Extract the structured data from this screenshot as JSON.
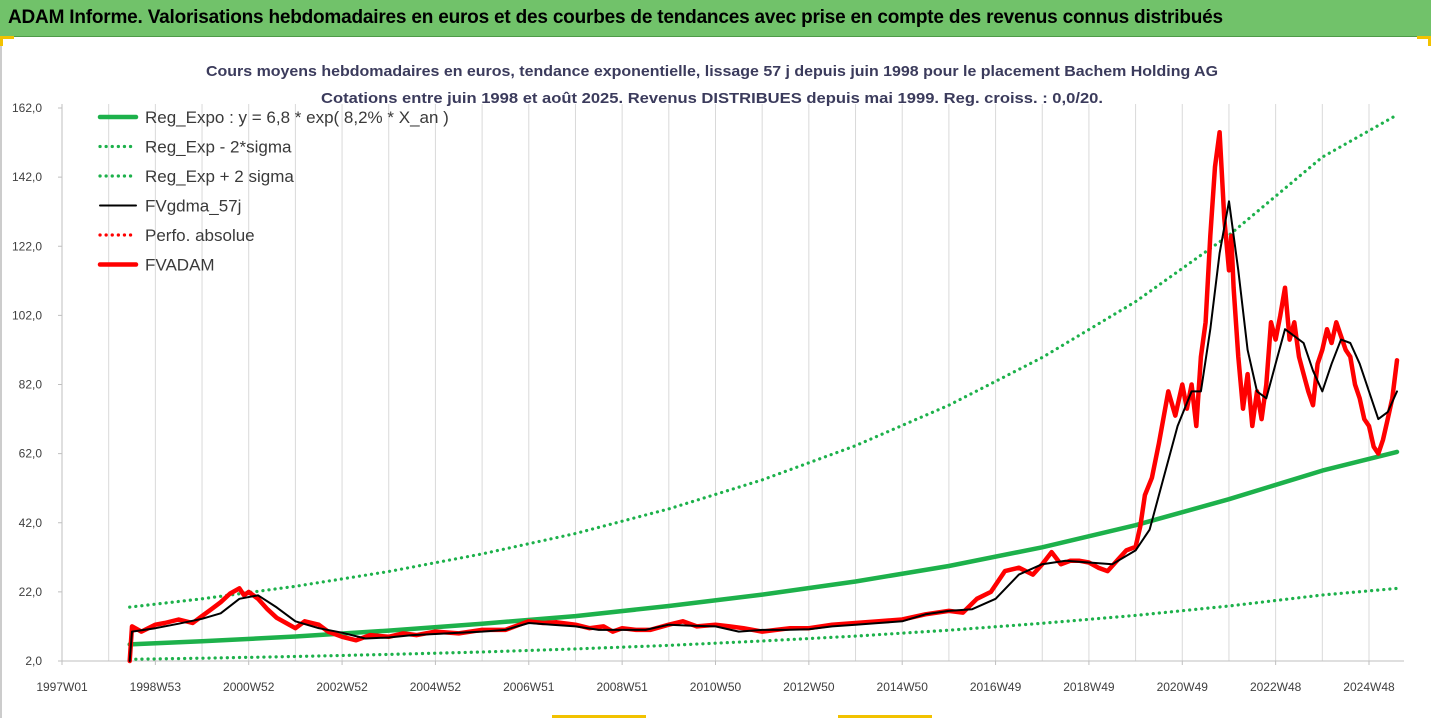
{
  "banner": {
    "title": "ADAM Informe. Valorisations hebdomadaires en euros et des courbes de tendances avec prise en compte des revenus connus distribués"
  },
  "chart_data": {
    "type": "line",
    "title": "Cours moyens hebdomadaires en euros, tendance exponentielle, lissage 57 j depuis juin 1998 pour le placement Bachem Holding AG",
    "subtitle": "Cotations entre juin 1998 et août 2025. Revenus DISTRIBUES depuis mai 1999. Reg. croiss. : 0,0/20.",
    "xlabel": "",
    "ylabel": "",
    "x_unit": "year",
    "xlim": [
      1997.0,
      2025.75
    ],
    "ylim": [
      2.0,
      162.0
    ],
    "y_ticks": [
      "2,0",
      "22,0",
      "42,0",
      "62,0",
      "82,0",
      "102,0",
      "122,0",
      "142,0",
      "162,0"
    ],
    "x_ticks": [
      {
        "label": "1997W01",
        "x": 1997.0
      },
      {
        "label": "1998W53",
        "x": 1999.0
      },
      {
        "label": "2000W52",
        "x": 2001.0
      },
      {
        "label": "2002W52",
        "x": 2003.0
      },
      {
        "label": "2004W52",
        "x": 2005.0
      },
      {
        "label": "2006W51",
        "x": 2007.0
      },
      {
        "label": "2008W51",
        "x": 2009.0
      },
      {
        "label": "2010W50",
        "x": 2011.0
      },
      {
        "label": "2012W50",
        "x": 2013.0
      },
      {
        "label": "2014W50",
        "x": 2015.0
      },
      {
        "label": "2016W49",
        "x": 2017.0
      },
      {
        "label": "2018W49",
        "x": 2019.0
      },
      {
        "label": "2020W49",
        "x": 2021.0
      },
      {
        "label": "2022W48",
        "x": 2023.0
      },
      {
        "label": "2024W48",
        "x": 2025.0
      }
    ],
    "grid": "vertical",
    "legend_position": "top-left",
    "colors": {
      "trend": "#1db14b",
      "bands": "#1db14b",
      "smoothed": "#000000",
      "absolute": "#ff0000",
      "price": "#ff0000",
      "grid": "#d9d9d9",
      "banner": "#71c26a",
      "corner": "#f2c200"
    },
    "series": [
      {
        "name": "Reg_Expo : y = 6,8 * exp( 8,2% *  X_an )",
        "style": "solid-thick",
        "color": "#1db14b",
        "x": [
          1998.45,
          2000,
          2002,
          2004,
          2006,
          2008,
          2010,
          2012,
          2014,
          2016,
          2018,
          2020,
          2022,
          2024,
          2025.6
        ],
        "y": [
          6.8,
          7.7,
          9.1,
          10.8,
          12.8,
          15.0,
          17.9,
          21.2,
          25.0,
          29.5,
          34.9,
          41.3,
          48.8,
          57.1,
          62.5
        ]
      },
      {
        "name": "Reg_Exp - 2*sigma",
        "style": "dotted",
        "color": "#1db14b",
        "x": [
          1998.45,
          2000,
          2002,
          2004,
          2006,
          2008,
          2010,
          2012,
          2014,
          2016,
          2018,
          2020,
          2022,
          2024,
          2025.6
        ],
        "y": [
          2.5,
          2.8,
          3.3,
          3.9,
          4.6,
          5.5,
          6.5,
          7.8,
          9.2,
          10.9,
          12.9,
          15.2,
          17.9,
          21.1,
          23.0
        ]
      },
      {
        "name": "Reg_Exp + 2 sigma",
        "style": "dotted",
        "color": "#1db14b",
        "x": [
          1998.45,
          2000,
          2002,
          2004,
          2006,
          2008,
          2010,
          2012,
          2014,
          2016,
          2018,
          2020,
          2022,
          2024,
          2025.6
        ],
        "y": [
          17.6,
          20.0,
          23.6,
          27.9,
          33.0,
          38.9,
          46.0,
          54.4,
          64.3,
          76.0,
          89.8,
          106.0,
          125.2,
          147.8,
          160.0
        ]
      },
      {
        "name": "FVgdma_57j",
        "style": "solid",
        "color": "#000000",
        "x": [
          1998.45,
          1998.5,
          1999.0,
          1999.5,
          2000.0,
          2000.4,
          2000.8,
          2001.2,
          2001.6,
          2002.0,
          2002.5,
          2003.0,
          2003.5,
          2004.0,
          2004.5,
          2005.0,
          2005.5,
          2006.0,
          2006.5,
          2007.0,
          2007.5,
          2008.0,
          2008.5,
          2009.0,
          2009.5,
          2010.0,
          2010.5,
          2011.0,
          2011.5,
          2012.0,
          2012.5,
          2013.0,
          2013.5,
          2014.0,
          2014.5,
          2015.0,
          2015.5,
          2016.0,
          2016.5,
          2017.0,
          2017.5,
          2018.0,
          2018.5,
          2019.0,
          2019.5,
          2020.0,
          2020.3,
          2020.6,
          2020.9,
          2021.2,
          2021.4,
          2021.6,
          2021.8,
          2022.0,
          2022.2,
          2022.4,
          2022.6,
          2022.8,
          2023.0,
          2023.2,
          2023.4,
          2023.6,
          2023.8,
          2024.0,
          2024.2,
          2024.4,
          2024.6,
          2024.8,
          2025.0,
          2025.2,
          2025.4,
          2025.6
        ],
        "y": [
          2.0,
          10.5,
          11.5,
          12.8,
          14.2,
          15.8,
          20.0,
          21.0,
          17.5,
          13.5,
          11.5,
          10.2,
          8.5,
          8.8,
          9.5,
          9.8,
          10.2,
          10.5,
          11.0,
          13.0,
          12.5,
          12.0,
          11.0,
          11.0,
          11.0,
          12.5,
          12.2,
          12.0,
          10.5,
          11.0,
          11.0,
          11.2,
          12.0,
          12.5,
          13.0,
          13.5,
          15.5,
          16.5,
          17.0,
          20.0,
          27.0,
          30.0,
          31.0,
          30.5,
          30.0,
          34.0,
          40.0,
          55.0,
          70.0,
          80.0,
          80.0,
          98.0,
          120.0,
          135.0,
          115.0,
          92.0,
          80.0,
          78.0,
          88.0,
          98.0,
          96.0,
          94.0,
          86.0,
          80.0,
          88.0,
          95.0,
          94.0,
          88.0,
          80.0,
          72.0,
          74.0,
          80.0
        ]
      },
      {
        "name": "Perfo. absolue",
        "style": "dotted",
        "color": "#ff0000",
        "x": [],
        "y": []
      },
      {
        "name": "FVADAM",
        "style": "solid-thick",
        "color": "#ff0000",
        "x": [
          1998.45,
          1998.5,
          1998.7,
          1999.0,
          1999.2,
          1999.5,
          1999.8,
          2000.0,
          2000.2,
          2000.4,
          2000.6,
          2000.8,
          2000.9,
          2001.0,
          2001.2,
          2001.4,
          2001.6,
          2001.8,
          2002.0,
          2002.2,
          2002.5,
          2002.7,
          2003.0,
          2003.3,
          2003.6,
          2004.0,
          2004.3,
          2004.6,
          2005.0,
          2005.5,
          2006.0,
          2006.5,
          2006.8,
          2007.0,
          2007.3,
          2007.6,
          2008.0,
          2008.3,
          2008.6,
          2008.8,
          2009.0,
          2009.3,
          2009.6,
          2010.0,
          2010.3,
          2010.6,
          2011.0,
          2011.3,
          2011.6,
          2012.0,
          2012.3,
          2012.6,
          2013.0,
          2013.5,
          2014.0,
          2014.5,
          2015.0,
          2015.5,
          2016.0,
          2016.3,
          2016.6,
          2016.9,
          2017.2,
          2017.5,
          2017.8,
          2018.0,
          2018.2,
          2018.4,
          2018.6,
          2018.8,
          2019.0,
          2019.2,
          2019.4,
          2019.6,
          2019.8,
          2020.0,
          2020.1,
          2020.2,
          2020.35,
          2020.5,
          2020.7,
          2020.85,
          2021.0,
          2021.1,
          2021.2,
          2021.3,
          2021.4,
          2021.5,
          2021.6,
          2021.7,
          2021.8,
          2021.9,
          2022.0,
          2022.05,
          2022.1,
          2022.2,
          2022.3,
          2022.4,
          2022.5,
          2022.6,
          2022.7,
          2022.8,
          2022.9,
          2023.0,
          2023.1,
          2023.2,
          2023.3,
          2023.4,
          2023.5,
          2023.6,
          2023.7,
          2023.8,
          2023.9,
          2024.0,
          2024.1,
          2024.2,
          2024.3,
          2024.4,
          2024.5,
          2024.6,
          2024.7,
          2024.8,
          2024.9,
          2025.0,
          2025.1,
          2025.2,
          2025.3,
          2025.4,
          2025.5,
          2025.6
        ],
        "y": [
          2.0,
          12.0,
          10.5,
          12.5,
          13.0,
          14.0,
          13.0,
          15.0,
          17.0,
          19.0,
          21.5,
          23.0,
          21.0,
          22.0,
          20.0,
          17.0,
          14.5,
          13.0,
          11.5,
          13.5,
          12.5,
          10.5,
          9.0,
          8.0,
          9.5,
          9.0,
          10.0,
          9.5,
          10.5,
          10.0,
          11.0,
          11.0,
          12.5,
          13.5,
          13.0,
          13.2,
          12.5,
          11.5,
          12.0,
          10.5,
          11.5,
          11.0,
          11.0,
          12.5,
          13.5,
          12.0,
          12.5,
          12.0,
          11.5,
          10.5,
          11.0,
          11.5,
          11.5,
          12.5,
          13.0,
          13.5,
          14.0,
          15.5,
          16.5,
          16.0,
          20.0,
          22.0,
          28.0,
          29.0,
          27.0,
          30.0,
          33.5,
          30.0,
          31.0,
          31.0,
          30.5,
          29.0,
          28.0,
          31.0,
          34.0,
          35.0,
          41.0,
          50.0,
          55.0,
          65.0,
          80.0,
          73.0,
          82.0,
          75.0,
          82.0,
          70.0,
          90.0,
          100.0,
          125.0,
          145.0,
          155.0,
          130.0,
          115.0,
          125.0,
          110.0,
          90.0,
          75.0,
          85.0,
          70.0,
          80.0,
          72.0,
          82.0,
          100.0,
          95.0,
          102.0,
          110.0,
          95.0,
          100.0,
          90.0,
          85.0,
          80.0,
          76.0,
          88.0,
          92.0,
          98.0,
          94.0,
          100.0,
          96.0,
          92.0,
          90.0,
          82.0,
          78.0,
          72.0,
          70.0,
          64.0,
          62.0,
          66.0,
          72.0,
          78.0,
          89.0
        ]
      }
    ]
  }
}
